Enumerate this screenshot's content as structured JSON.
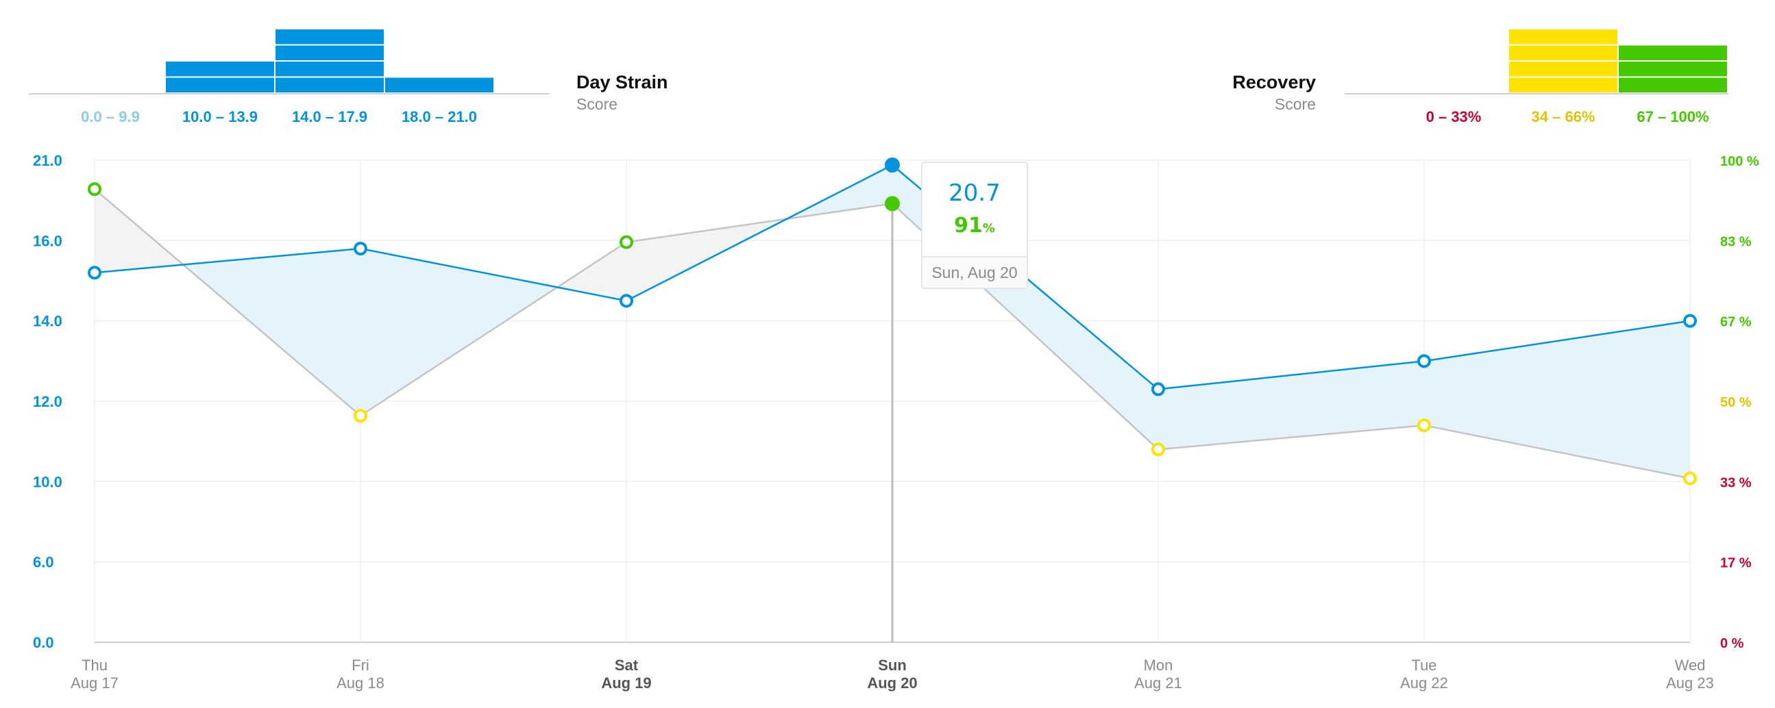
{
  "colors": {
    "strain": "#0093e0",
    "strain_light": "#8ccbeb",
    "rec_red": "#cc0033",
    "rec_yellow": "#ffe200",
    "rec_yellow_text": "#e0c400",
    "rec_green": "#44c800",
    "strain_fill": "#e5f3fb",
    "rec_fill": "#f3f3f3",
    "grid": "#eeeeee",
    "axis": "#cccccc",
    "day_label": "#8a8a8a"
  },
  "chart_data": {
    "type": "line",
    "x": [
      "Aug 17",
      "Aug 18",
      "Aug 19",
      "Aug 20",
      "Aug 21",
      "Aug 22",
      "Aug 23"
    ],
    "x_day_labels": [
      "Thu",
      "Fri",
      "Sat",
      "Sun",
      "Mon",
      "Tue",
      "Wed"
    ],
    "bold_days": [
      2,
      3
    ],
    "series": [
      {
        "name": "Day Strain",
        "axis": "left",
        "values": [
          15.2,
          15.8,
          14.5,
          20.7,
          12.3,
          13.0,
          14.0
        ]
      },
      {
        "name": "Recovery",
        "axis": "right",
        "values": [
          94,
          47,
          83,
          91,
          40,
          45,
          34
        ],
        "unit": "%"
      }
    ],
    "left_axis": {
      "ticks": [
        "21.0",
        "16.0",
        "14.0",
        "12.0",
        "10.0",
        "6.0",
        "0.0"
      ]
    },
    "right_axis": {
      "ticks": [
        "100 %",
        "83 %",
        "67 %",
        "50 %",
        "33 %",
        "17 %",
        "0 %"
      ],
      "ylim": [
        0,
        100
      ]
    },
    "selected_index": 3,
    "tooltip": {
      "strain": "20.7",
      "recovery": "91",
      "recovery_unit": "%",
      "date": "Sun, Aug 20"
    },
    "strain_histogram": {
      "title": "Day Strain",
      "subtitle": "Score",
      "bins": [
        "0.0 – 9.9",
        "10.0 – 13.9",
        "14.0 – 17.9",
        "18.0 – 21.0"
      ],
      "counts": [
        0,
        2,
        4,
        1
      ]
    },
    "recovery_histogram": {
      "title": "Recovery",
      "subtitle": "Score",
      "bins": [
        "0 – 33%",
        "34 – 66%",
        "67 – 100%"
      ],
      "counts": [
        0,
        4,
        3
      ]
    }
  }
}
